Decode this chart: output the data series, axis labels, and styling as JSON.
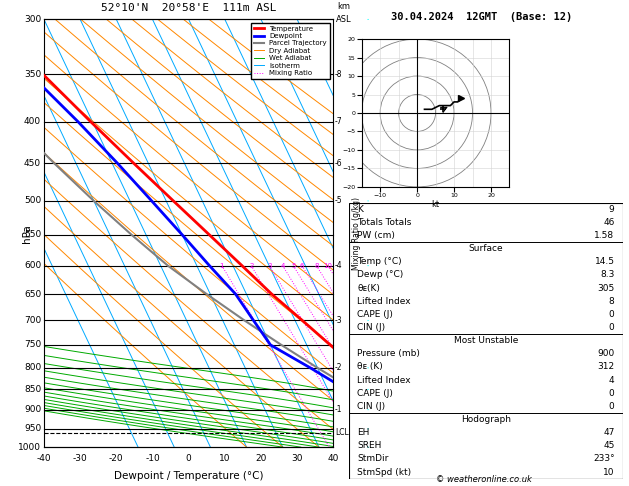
{
  "title_left": "52°10'N  20°58'E  111m ASL",
  "title_right": "30.04.2024  12GMT  (Base: 12)",
  "xlabel": "Dewpoint / Temperature (°C)",
  "ylabel": "hPa",
  "pressure_ticks": [
    300,
    350,
    400,
    450,
    500,
    550,
    600,
    650,
    700,
    750,
    800,
    850,
    900,
    950,
    1000
  ],
  "temp_profile": {
    "pressure": [
      1000,
      975,
      950,
      925,
      900,
      850,
      800,
      750,
      700,
      650,
      600,
      550,
      500,
      450,
      400,
      350,
      300
    ],
    "temp": [
      14.5,
      13.5,
      12.0,
      9.5,
      8.5,
      5.0,
      1.0,
      -3.5,
      -8.0,
      -13.0,
      -17.5,
      -22.5,
      -28.0,
      -34.0,
      -40.5,
      -47.5,
      -52.0
    ]
  },
  "dewp_profile": {
    "pressure": [
      1000,
      975,
      950,
      925,
      900,
      850,
      800,
      750,
      700,
      650,
      600,
      550,
      500,
      450,
      400,
      350,
      300
    ],
    "temp": [
      8.3,
      7.5,
      5.0,
      3.0,
      1.0,
      -5.0,
      -12.0,
      -20.0,
      -21.5,
      -23.0,
      -26.5,
      -30.0,
      -34.0,
      -38.5,
      -44.0,
      -51.0,
      -58.0
    ]
  },
  "parcel_profile": {
    "pressure": [
      1000,
      975,
      950,
      925,
      900,
      850,
      800,
      750,
      700,
      650,
      600,
      550,
      500,
      450,
      400,
      350,
      300
    ],
    "temp": [
      14.5,
      12.0,
      9.5,
      6.0,
      3.0,
      -3.0,
      -10.0,
      -17.0,
      -24.0,
      -31.0,
      -38.0,
      -44.0,
      -50.0,
      -56.0,
      -62.0,
      -68.5,
      -74.0
    ]
  },
  "lcl_pressure": 960,
  "colors": {
    "temperature": "#ff0000",
    "dewpoint": "#0000ff",
    "parcel": "#808080",
    "dry_adiabat": "#ff8800",
    "wet_adiabat": "#00aa00",
    "isotherm": "#00aaff",
    "mixing_ratio": "#ff00ff"
  },
  "stats": {
    "K": 9,
    "TotTot": 46,
    "PW": 1.58,
    "surf_temp": 14.5,
    "surf_dewp": 8.3,
    "surf_theta_e": 305,
    "surf_li": 8,
    "surf_cape": 0,
    "surf_cin": 0,
    "mu_pressure": 900,
    "mu_theta_e": 312,
    "mu_li": 4,
    "mu_cape": 0,
    "mu_cin": 0,
    "hodo_eh": 47,
    "hodo_sreh": 45,
    "hodo_stmdir": 233,
    "hodo_stmspd": 10
  }
}
